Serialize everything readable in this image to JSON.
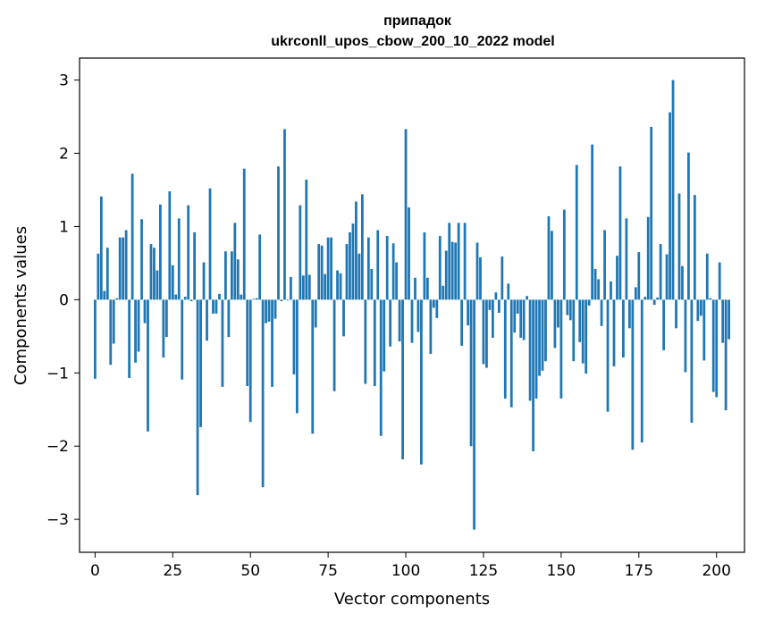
{
  "chart_data": {
    "type": "bar",
    "title": "припадок",
    "subtitle": "ukrconll_upos_cbow_200_10_2022 model",
    "xlabel": "Vector components",
    "ylabel": "Components values",
    "xlim": [
      -5,
      209
    ],
    "ylim": [
      -3.45,
      3.3
    ],
    "xticks": [
      0,
      25,
      50,
      75,
      100,
      125,
      150,
      175,
      200
    ],
    "yticks": [
      -3,
      -2,
      -1,
      0,
      1,
      2,
      3
    ],
    "ytick_labels": [
      "−3",
      "−2",
      "−1",
      "0",
      "1",
      "2",
      "3"
    ],
    "grid": false,
    "bar_color": "#1f77b4",
    "values": [
      -1.08,
      0.63,
      1.41,
      0.12,
      0.71,
      -0.89,
      -0.6,
      0.02,
      0.85,
      0.85,
      0.95,
      -1.07,
      1.72,
      -0.86,
      -0.71,
      1.1,
      -0.32,
      -1.8,
      0.76,
      0.71,
      0.4,
      1.3,
      -0.79,
      -0.51,
      1.48,
      0.47,
      0.07,
      1.11,
      -1.09,
      0.04,
      1.29,
      -0.02,
      0.92,
      -2.67,
      -1.74,
      0.51,
      -0.56,
      1.52,
      -0.19,
      -0.19,
      0.08,
      -1.19,
      0.66,
      -0.51,
      0.66,
      1.05,
      0.55,
      0.07,
      1.79,
      -1.18,
      -1.67,
      0.01,
      0.02,
      0.89,
      -2.56,
      -0.32,
      -0.3,
      -1.19,
      -0.26,
      1.82,
      -0.02,
      2.33,
      -0.01,
      0.31,
      -1.02,
      -1.55,
      1.29,
      0.33,
      1.64,
      0.34,
      -1.83,
      -0.38,
      0.76,
      0.74,
      0.35,
      0.85,
      0.85,
      -1.25,
      0.4,
      0.36,
      -0.5,
      0.76,
      0.92,
      1.04,
      1.34,
      0.63,
      1.44,
      -1.15,
      0.85,
      0.42,
      -1.18,
      0.95,
      -1.86,
      -0.98,
      0.87,
      -0.64,
      0.77,
      0.51,
      -0.57,
      -2.18,
      2.33,
      1.26,
      -0.59,
      0.3,
      -0.44,
      -2.25,
      0.92,
      0.3,
      -0.74,
      -0.11,
      -0.25,
      0.87,
      0.19,
      0.67,
      1.05,
      0.79,
      0.78,
      1.05,
      -0.63,
      1.05,
      -0.35,
      -2.0,
      -3.14,
      0.78,
      0.58,
      -0.88,
      -0.93,
      -0.14,
      -0.52,
      0.1,
      -0.18,
      0.59,
      -1.35,
      0.22,
      -1.47,
      -0.45,
      -0.19,
      -0.52,
      -0.55,
      0.05,
      -1.38,
      -2.07,
      -1.35,
      -1.04,
      -0.97,
      -0.84,
      1.14,
      0.94,
      -0.66,
      -0.38,
      -1.35,
      1.23,
      -0.21,
      -0.28,
      -0.84,
      1.84,
      -0.58,
      -0.87,
      -1.01,
      -0.08,
      2.12,
      0.42,
      0.28,
      -0.36,
      0.95,
      -1.53,
      0.25,
      -0.91,
      0.6,
      1.82,
      -0.79,
      1.11,
      -0.39,
      -2.05,
      0.17,
      0.65,
      -1.95,
      0.04,
      1.13,
      2.36,
      -0.07,
      0.03,
      0.76,
      -0.69,
      0.62,
      2.56,
      3.0,
      -0.39,
      1.45,
      0.46,
      -0.99,
      2.01,
      -1.68,
      1.43,
      -0.29,
      -0.22,
      -0.83,
      0.63,
      0.02,
      -1.26,
      -1.33,
      0.51,
      -0.59,
      -1.51,
      -0.54
    ]
  }
}
